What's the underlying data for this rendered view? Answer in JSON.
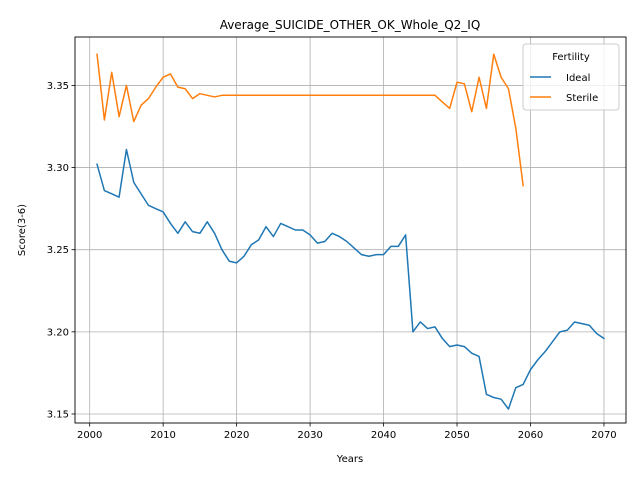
{
  "chart_data": {
    "type": "line",
    "title": "Average_SUICIDE_OTHER_OK_Whole_Q2_IQ",
    "xlabel": "Years",
    "ylabel": "Score(3-6)",
    "xlim": [
      1998,
      2073
    ],
    "ylim": [
      3.1445,
      3.3795
    ],
    "xticks": [
      2000,
      2010,
      2020,
      2030,
      2040,
      2050,
      2060,
      2070
    ],
    "yticks": [
      3.15,
      3.2,
      3.25,
      3.3,
      3.35
    ],
    "ytick_labels": [
      "3.15",
      "3.20",
      "3.25",
      "3.30",
      "3.35"
    ],
    "grid": true,
    "legend": {
      "title": "Fertility",
      "placement": "upper right"
    },
    "series": [
      {
        "name": "Ideal",
        "color": "#1f77b4",
        "x": [
          2001,
          2002,
          2003,
          2004,
          2005,
          2006,
          2007,
          2008,
          2009,
          2010,
          2011,
          2012,
          2013,
          2014,
          2015,
          2016,
          2017,
          2018,
          2019,
          2020,
          2021,
          2022,
          2023,
          2024,
          2025,
          2026,
          2027,
          2028,
          2029,
          2030,
          2031,
          2032,
          2033,
          2034,
          2035,
          2036,
          2037,
          2038,
          2039,
          2040,
          2041,
          2042,
          2043,
          2044,
          2045,
          2046,
          2047,
          2048,
          2049,
          2050,
          2051,
          2052,
          2053,
          2054,
          2055,
          2056,
          2057,
          2058,
          2059,
          2060,
          2061,
          2062,
          2063,
          2064,
          2065,
          2066,
          2067,
          2068,
          2069,
          2070
        ],
        "values": [
          3.302,
          3.286,
          3.284,
          3.282,
          3.311,
          3.291,
          3.284,
          3.277,
          3.275,
          3.273,
          3.266,
          3.26,
          3.267,
          3.261,
          3.26,
          3.267,
          3.26,
          3.25,
          3.243,
          3.242,
          3.246,
          3.253,
          3.256,
          3.264,
          3.258,
          3.266,
          3.264,
          3.262,
          3.262,
          3.259,
          3.254,
          3.255,
          3.26,
          3.258,
          3.255,
          3.251,
          3.247,
          3.246,
          3.247,
          3.247,
          3.252,
          3.252,
          3.259,
          3.2,
          3.206,
          3.202,
          3.203,
          3.196,
          3.191,
          3.192,
          3.191,
          3.187,
          3.185,
          3.162,
          3.16,
          3.159,
          3.153,
          3.166,
          3.168,
          3.177,
          3.183,
          3.188,
          3.194,
          3.2,
          3.201,
          3.206,
          3.205,
          3.204,
          3.199,
          3.196
        ]
      },
      {
        "name": "Sterile",
        "color": "#ff7f0e",
        "x": [
          2001,
          2002,
          2003,
          2004,
          2005,
          2006,
          2007,
          2008,
          2009,
          2010,
          2011,
          2012,
          2013,
          2014,
          2015,
          2016,
          2017,
          2018,
          2019,
          2020,
          2021,
          2022,
          2023,
          2024,
          2025,
          2026,
          2027,
          2028,
          2029,
          2030,
          2031,
          2032,
          2033,
          2034,
          2035,
          2036,
          2037,
          2038,
          2039,
          2040,
          2041,
          2042,
          2043,
          2044,
          2045,
          2046,
          2047,
          2048,
          2049,
          2050,
          2051,
          2052,
          2053,
          2054,
          2055,
          2056,
          2057,
          2058,
          2059
        ],
        "values": [
          3.369,
          3.329,
          3.358,
          3.331,
          3.35,
          3.328,
          3.338,
          3.342,
          3.349,
          3.355,
          3.357,
          3.349,
          3.348,
          3.342,
          3.345,
          3.344,
          3.343,
          3.344,
          3.344,
          3.344,
          3.344,
          3.344,
          3.344,
          3.344,
          3.344,
          3.344,
          3.344,
          3.344,
          3.344,
          3.344,
          3.344,
          3.344,
          3.344,
          3.344,
          3.344,
          3.344,
          3.344,
          3.344,
          3.344,
          3.344,
          3.344,
          3.344,
          3.344,
          3.344,
          3.344,
          3.344,
          3.344,
          3.34,
          3.336,
          3.352,
          3.351,
          3.334,
          3.355,
          3.336,
          3.369,
          3.355,
          3.348,
          3.324,
          3.289
        ]
      }
    ]
  }
}
